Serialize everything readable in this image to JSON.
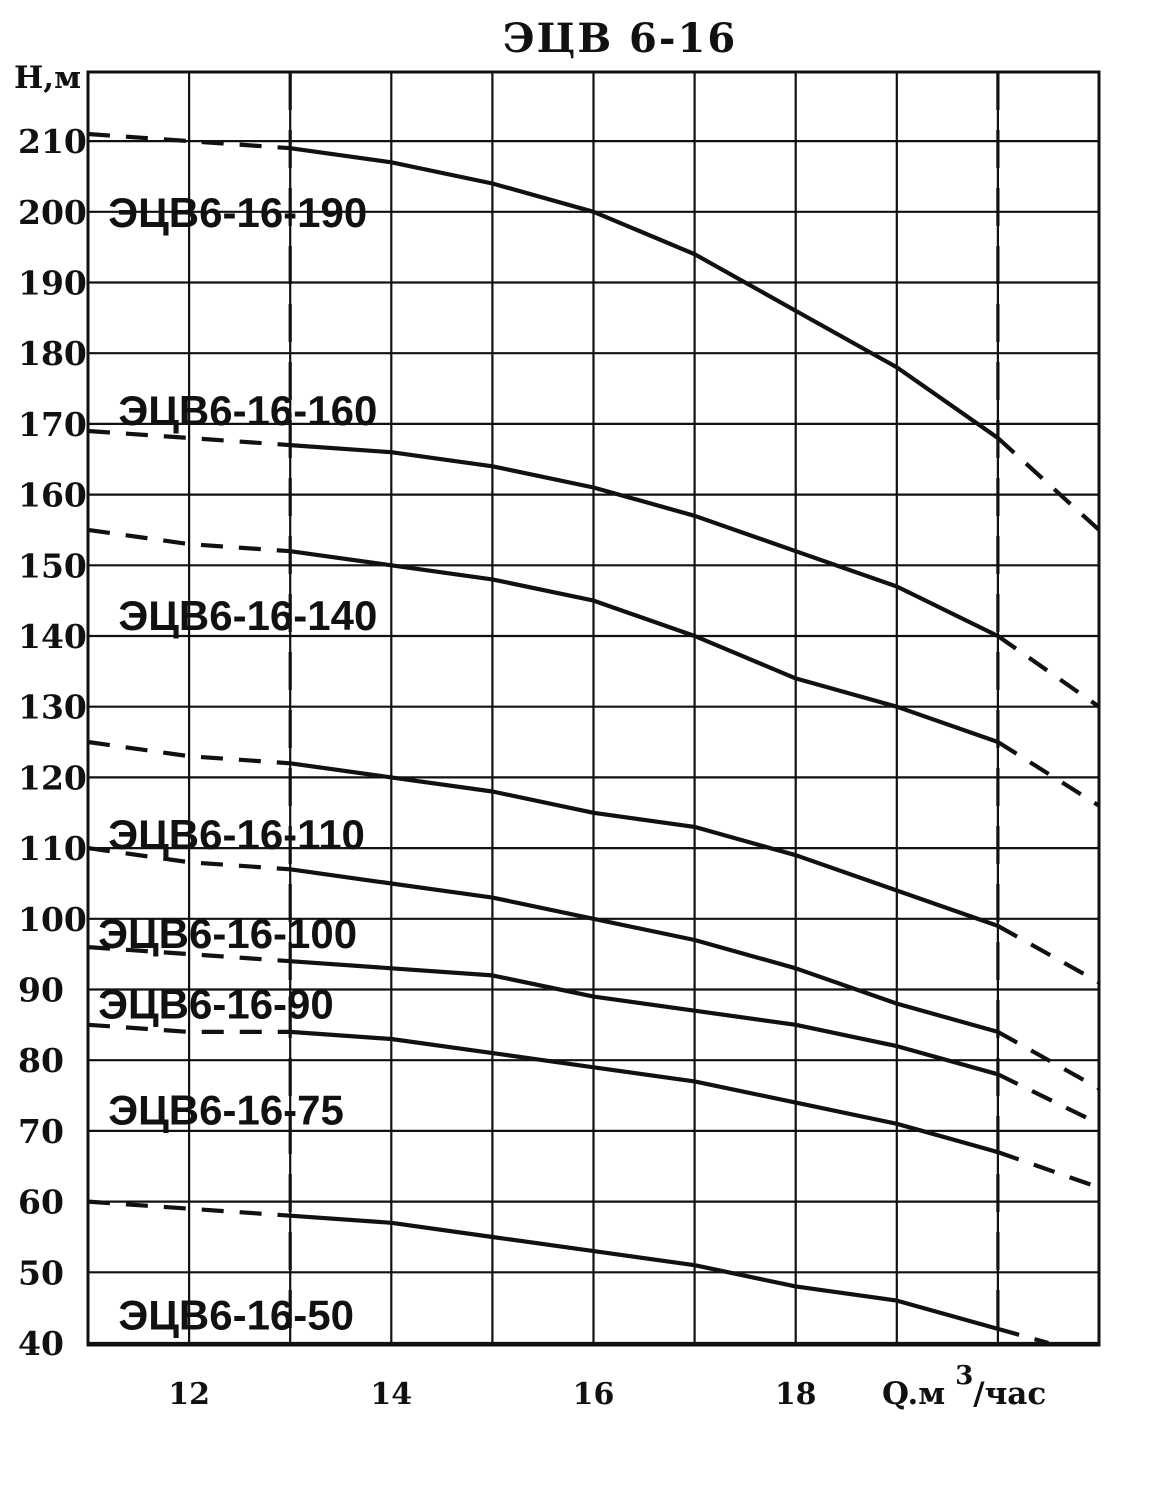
{
  "chart_data": {
    "type": "line",
    "title": "ЭЦВ 6-16",
    "ylabel": "H,м",
    "xlabel": "Q.м",
    "xlabel_sup": "3",
    "xlabel_suffix": "/час",
    "xlim": [
      11,
      21
    ],
    "ylim": [
      40,
      220
    ],
    "x_ticks": [
      12,
      14,
      16,
      18
    ],
    "y_ticks": [
      40,
      50,
      60,
      70,
      80,
      90,
      100,
      110,
      120,
      130,
      140,
      150,
      160,
      170,
      180,
      190,
      200,
      210
    ],
    "working_range": [
      13,
      20
    ],
    "grid": true,
    "series": [
      {
        "name": "ЭЦВ6-16-190",
        "x": [
          11,
          12,
          13,
          14,
          15,
          16,
          17,
          18,
          19,
          20,
          21
        ],
        "y": [
          211,
          210,
          209,
          207,
          204,
          200,
          194,
          186,
          178,
          168,
          155
        ]
      },
      {
        "name": "ЭЦВ6-16-160",
        "x": [
          11,
          12,
          13,
          14,
          15,
          16,
          17,
          18,
          19,
          20,
          21
        ],
        "y": [
          169,
          168,
          167,
          166,
          164,
          161,
          157,
          152,
          147,
          140,
          130
        ]
      },
      {
        "name": "ЭЦВ6-16-140",
        "x": [
          11,
          12,
          13,
          14,
          15,
          16,
          17,
          18,
          19,
          20,
          21
        ],
        "y": [
          155,
          153,
          152,
          150,
          148,
          145,
          140,
          134,
          130,
          125,
          116
        ]
      },
      {
        "name": "ЭЦВ6-16-110",
        "x": [
          11,
          12,
          13,
          14,
          15,
          16,
          17,
          18,
          19,
          20,
          21
        ],
        "y": [
          125,
          123,
          122,
          120,
          118,
          115,
          113,
          109,
          104,
          99,
          91
        ]
      },
      {
        "name": "ЭЦВ6-16-100",
        "x": [
          11,
          12,
          13,
          14,
          15,
          16,
          17,
          18,
          19,
          20,
          21
        ],
        "y": [
          110,
          108,
          107,
          105,
          103,
          100,
          97,
          93,
          88,
          84,
          76
        ]
      },
      {
        "name": "ЭЦВ6-16-90",
        "x": [
          11,
          12,
          13,
          14,
          15,
          16,
          17,
          18,
          19,
          20,
          21
        ],
        "y": [
          96,
          95,
          94,
          93,
          92,
          89,
          87,
          85,
          82,
          78,
          71
        ]
      },
      {
        "name": "ЭЦВ6-16-75",
        "x": [
          11,
          12,
          13,
          14,
          15,
          16,
          17,
          18,
          19,
          20,
          21
        ],
        "y": [
          85,
          84,
          84,
          83,
          81,
          79,
          77,
          74,
          71,
          67,
          62
        ]
      },
      {
        "name": "ЭЦВ6-16-50",
        "x": [
          11,
          12,
          13,
          14,
          15,
          16,
          17,
          18,
          19,
          20,
          20.5
        ],
        "y": [
          60,
          59,
          58,
          57,
          55,
          53,
          51,
          48,
          46,
          42,
          40
        ]
      }
    ],
    "series_labels": [
      {
        "series": 0,
        "text": "ЭЦВ6-16-190",
        "x": 11.2,
        "y": 200
      },
      {
        "series": 1,
        "text": "ЭЦВ6-16-160",
        "x": 11.3,
        "y": 172
      },
      {
        "series": 2,
        "text": "ЭЦВ6-16-140",
        "x": 11.3,
        "y": 143
      },
      {
        "series": 3,
        "text": "ЭЦВ6-16-110",
        "x": 11.2,
        "y": 112
      },
      {
        "series": 4,
        "text": "ЭЦВ6-16-100",
        "x": 11.1,
        "y": 98
      },
      {
        "series": 5,
        "text": "ЭЦВ6-16-90",
        "x": 11.1,
        "y": 88
      },
      {
        "series": 6,
        "text": "ЭЦВ6-16-75",
        "x": 11.2,
        "y": 73
      },
      {
        "series": 7,
        "text": "ЭЦВ6-16-50",
        "x": 11.3,
        "y": 44
      }
    ]
  }
}
